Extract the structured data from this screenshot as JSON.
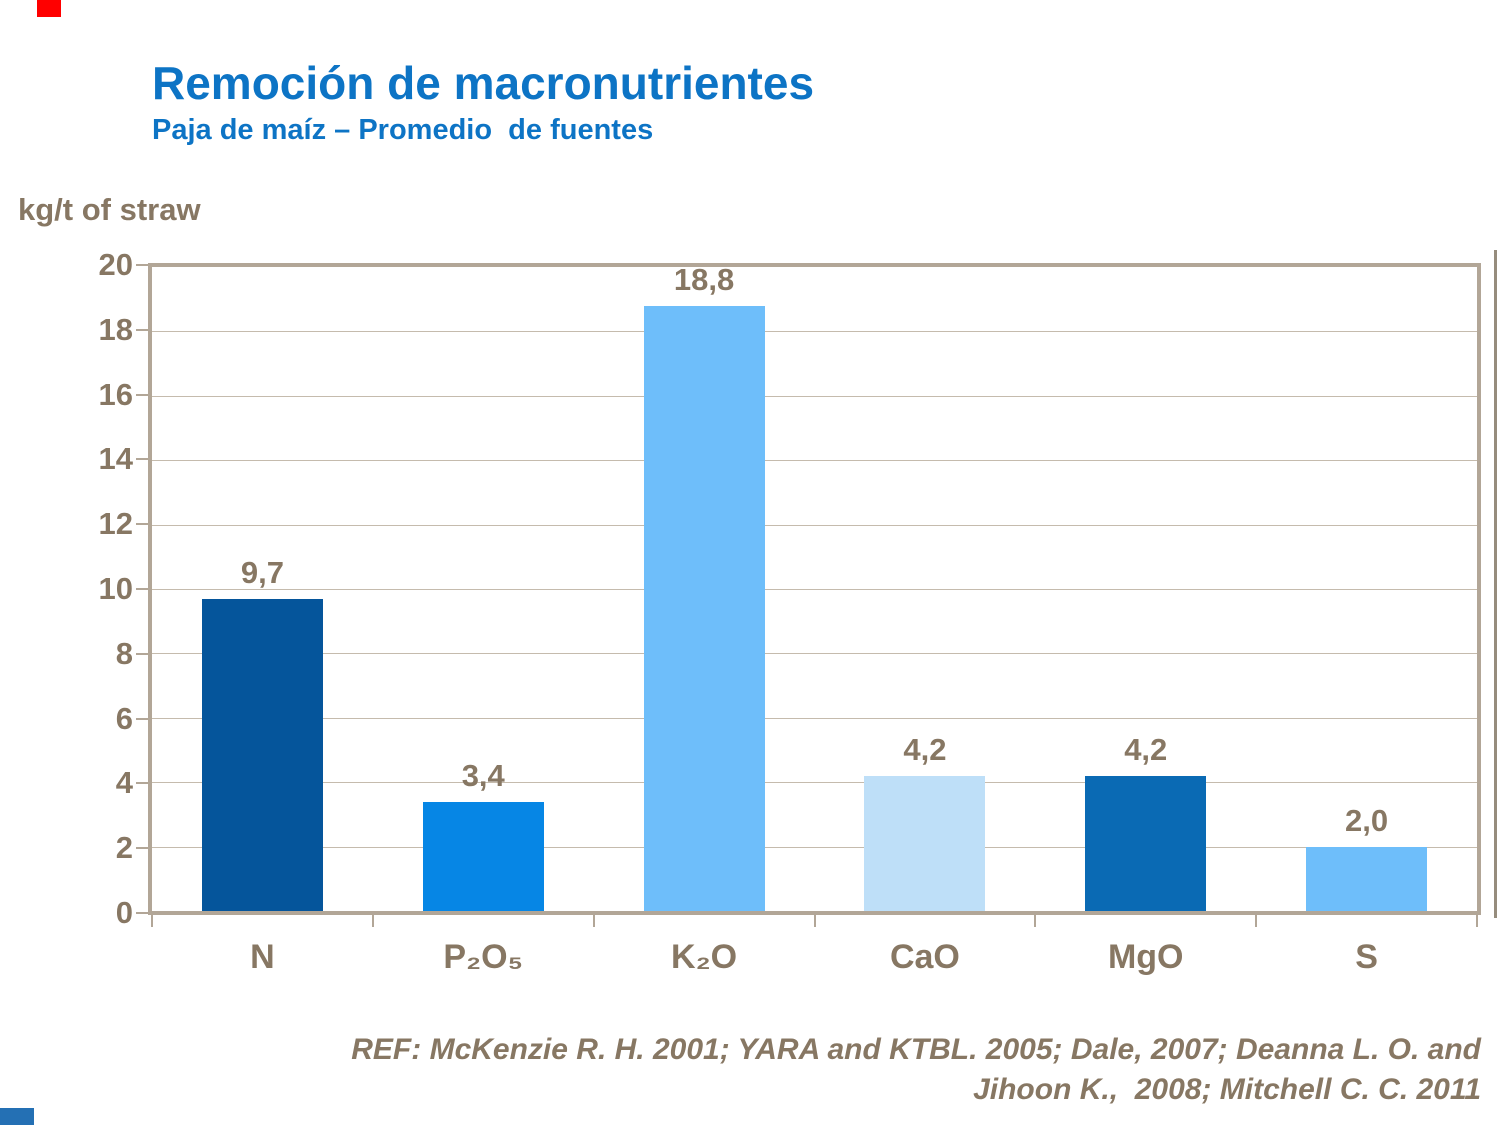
{
  "slide": {
    "title": "Remoción de macronutrientes",
    "subtitle": "Paja de maíz – Promedio  de fuentes",
    "reference_line1": "REF: McKenzie R. H. 2001; YARA and KTBL. 2005; Dale, 2007; Deanna L. O. and",
    "reference_line2": "Jihoon K.,  2008; Mitchell C. C. 2011"
  },
  "chart_data": {
    "type": "bar",
    "title": "Remoción de macronutrientes",
    "subtitle": "Paja de maíz – Promedio de fuentes",
    "ylabel": "kg/t of straw",
    "categories": [
      "N",
      "P₂O₅",
      "K₂O",
      "CaO",
      "MgO",
      "S"
    ],
    "values": [
      9.7,
      3.4,
      18.8,
      4.2,
      4.2,
      2.0
    ],
    "value_labels": [
      "9,7",
      "3,4",
      "18,8",
      "4,2",
      "4,2",
      "2,0"
    ],
    "bar_colors": [
      "#05559b",
      "#0686e5",
      "#6ebefa",
      "#bedff8",
      "#0a6ab4",
      "#6ebefa"
    ],
    "ylim": [
      0,
      20
    ],
    "ytick_step": 2,
    "ytick_labels": [
      "20",
      "18",
      "16",
      "14",
      "12",
      "10",
      "8",
      "6",
      "4",
      "2",
      "0"
    ],
    "grid": "horizontal gridlines every 2 units",
    "legend": "none"
  },
  "colors": {
    "title_blue": "#0d74c5",
    "text_brown": "#877763",
    "frame": "#b2a697",
    "gridline": "#c5bbad",
    "corner_red": "#ff0000",
    "corner_blue": "#2470b4"
  }
}
